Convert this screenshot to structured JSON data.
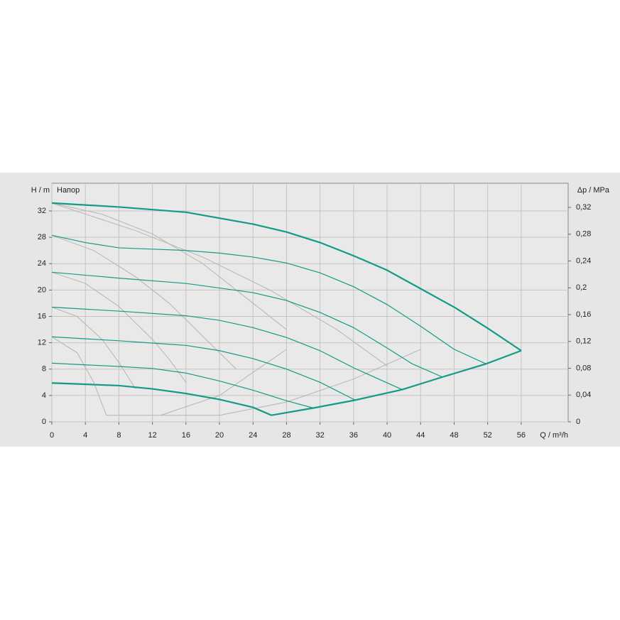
{
  "chart_data": {
    "type": "line",
    "y_label": "H / m",
    "y2_label": "Δp / MPa",
    "x_label": "Q / m³/h",
    "annotation": "Напор",
    "xlim": [
      0,
      61.6
    ],
    "ylim": [
      0,
      36.2
    ],
    "y2lim": [
      0,
      0.356
    ],
    "xticks": [
      0,
      4,
      8,
      12,
      16,
      20,
      24,
      28,
      32,
      36,
      40,
      44,
      48,
      52,
      56
    ],
    "yticks": [
      0,
      4,
      8,
      12,
      16,
      20,
      24,
      28,
      32
    ],
    "y2ticks": [
      0,
      {
        "value": 0.04,
        "label": "0,04"
      },
      {
        "value": 0.08,
        "label": "0,08"
      },
      {
        "value": 0.12,
        "label": "0,12"
      },
      {
        "value": 0.16,
        "label": "0,16"
      },
      {
        "value": 0.2,
        "label": "0,2"
      },
      {
        "value": 0.24,
        "label": "0,24"
      },
      {
        "value": 0.28,
        "label": "0,28"
      },
      {
        "value": 0.32,
        "label": "0,32"
      }
    ],
    "grid": true,
    "series": [
      {
        "color": "#b5b5b5",
        "line_width": 1,
        "x": [
          0,
          6,
          12,
          18,
          24,
          28
        ],
        "values": [
          33.2,
          31.5,
          28.5,
          24,
          18,
          14
        ]
      },
      {
        "color": "#b5b5b5",
        "line_width": 1,
        "x": [
          0,
          5,
          10,
          14,
          18,
          22
        ],
        "values": [
          28.3,
          26,
          22,
          18,
          13,
          8
        ]
      },
      {
        "color": "#b5b5b5",
        "line_width": 1,
        "x": [
          0,
          4,
          8,
          12,
          14,
          16
        ],
        "values": [
          22.7,
          21,
          17.5,
          12.5,
          9.5,
          6
        ]
      },
      {
        "color": "#b5b5b5",
        "line_width": 1,
        "x": [
          0,
          3,
          6,
          8,
          10
        ],
        "values": [
          17.4,
          16,
          12.5,
          9,
          5
        ]
      },
      {
        "color": "#b5b5b5",
        "line_width": 1,
        "x": [
          0,
          3,
          5,
          6.5
        ],
        "values": [
          12.9,
          10.5,
          6,
          1
        ]
      },
      {
        "color": "#b5b5b5",
        "line_width": 1,
        "x": [
          6.5,
          13,
          20,
          28,
          36,
          44
        ],
        "values": [
          1,
          1,
          1,
          3,
          6.5,
          11
        ]
      },
      {
        "color": "#b5b5b5",
        "line_width": 1,
        "x": [
          13,
          20,
          28
        ],
        "values": [
          1,
          4,
          11
        ]
      },
      {
        "color": "#b5b5b5",
        "line_width": 1,
        "x": [
          0,
          10,
          18,
          26,
          34,
          40
        ],
        "values": [
          33.2,
          29,
          25,
          20,
          14,
          8.5
        ]
      },
      {
        "color": "#139b86",
        "line_width": 2.2,
        "x": [
          0,
          8,
          16,
          20,
          24,
          28,
          32,
          36,
          40,
          44,
          48,
          52,
          56
        ],
        "values": [
          33.2,
          32.6,
          31.8,
          30.9,
          30,
          28.8,
          27.2,
          25.2,
          23,
          20.2,
          17.4,
          14.2,
          10.8
        ]
      },
      {
        "color": "#139b86",
        "line_width": 1.2,
        "x": [
          0,
          4,
          8,
          12,
          16,
          20,
          24,
          28,
          32,
          36,
          40,
          44,
          48,
          51.8
        ],
        "values": [
          28.3,
          27.2,
          26.4,
          26.2,
          26,
          25.6,
          25,
          24.1,
          22.6,
          20.5,
          17.8,
          14.5,
          11,
          8.8
        ]
      },
      {
        "color": "#139b86",
        "line_width": 1.2,
        "x": [
          0,
          8,
          16,
          20,
          24,
          28,
          32,
          36,
          40,
          43,
          46.6
        ],
        "values": [
          22.7,
          21.8,
          21,
          20.3,
          19.6,
          18.4,
          16.6,
          14.3,
          11.2,
          8.8,
          6.8
        ]
      },
      {
        "color": "#139b86",
        "line_width": 1.2,
        "x": [
          0,
          8,
          16,
          20,
          24,
          28,
          32,
          36,
          41.8
        ],
        "values": [
          17.4,
          16.8,
          16.1,
          15.4,
          14.3,
          12.8,
          10.8,
          8.2,
          4.9
        ]
      },
      {
        "color": "#139b86",
        "line_width": 1.2,
        "x": [
          0,
          8,
          16,
          20,
          24,
          28,
          32,
          36.2
        ],
        "values": [
          12.9,
          12.3,
          11.6,
          10.8,
          9.6,
          8,
          6,
          3.3
        ]
      },
      {
        "color": "#139b86",
        "line_width": 1.2,
        "x": [
          0,
          8,
          12,
          16,
          20,
          24,
          28,
          31.2
        ],
        "values": [
          8.9,
          8.4,
          8.1,
          7.4,
          6.2,
          4.8,
          3.2,
          2.1
        ]
      },
      {
        "color": "#139b86",
        "line_width": 2.2,
        "x": [
          0,
          8,
          12,
          16,
          20,
          24,
          26.2
        ],
        "values": [
          5.9,
          5.5,
          5,
          4.3,
          3.4,
          2.2,
          1
        ]
      },
      {
        "color": "#139b86",
        "line_width": 2.2,
        "x": [
          26.2,
          31.2,
          36.2,
          41.8,
          46.6,
          51.8,
          56
        ],
        "values": [
          1,
          2.1,
          3.3,
          4.9,
          6.8,
          8.8,
          10.8
        ]
      }
    ]
  }
}
